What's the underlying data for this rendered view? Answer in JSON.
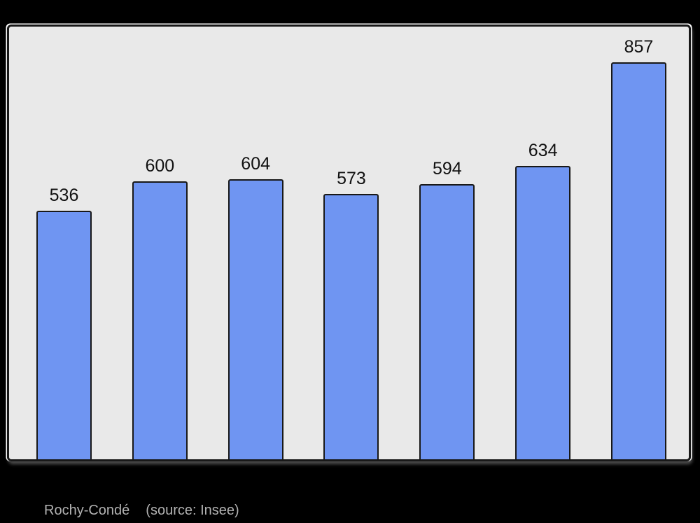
{
  "chart_data": {
    "type": "bar",
    "values": [
      536,
      600,
      604,
      573,
      594,
      634,
      857
    ],
    "data_labels": [
      "536",
      "600",
      "604",
      "573",
      "594",
      "634",
      "857"
    ],
    "categories": [],
    "title": "",
    "xlabel": "",
    "ylabel": "",
    "ylim": [
      0,
      935
    ],
    "grid": false,
    "legend": false,
    "data_labels_position": "above-bars"
  },
  "caption": {
    "title": "Rochy-Condé",
    "source": "(source: Insee)"
  },
  "colors": {
    "page_bg": "#000000",
    "plot_bg": "#e9e9e9",
    "bar_fill": "#6f95f2",
    "bar_border": "#181818",
    "frame_border": "#181818",
    "frame_highlight": "#ffffff",
    "label_text": "#111111",
    "caption_text": "#b2b2b2"
  }
}
